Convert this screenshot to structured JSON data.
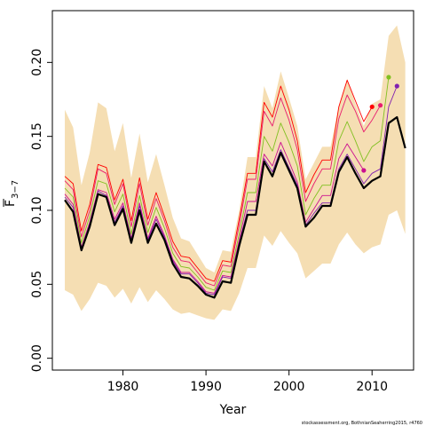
{
  "chart_data": {
    "type": "line",
    "xlabel": "Year",
    "ylabel_main": "F",
    "ylabel_sub": "3−7",
    "xlim": [
      1971.5,
      2015
    ],
    "ylim": [
      -0.008,
      0.235
    ],
    "xticks": [
      1980,
      1990,
      2000,
      2010
    ],
    "yticks": [
      0.0,
      0.05,
      0.1,
      0.15,
      0.2
    ],
    "ytick_labels": [
      "0.00",
      "0.05",
      "0.10",
      "0.15",
      "0.20"
    ],
    "colors": {
      "band": "#f5deb3",
      "final": "#000000",
      "retro_red": "#ff0000",
      "retro_pink": "#e81c6e",
      "retro_magenta": "#cc1090",
      "retro_green": "#80c020",
      "retro_purple": "#8020b0"
    },
    "band": {
      "x": [
        1973,
        1974,
        1975,
        1976,
        1977,
        1978,
        1979,
        1980,
        1981,
        1982,
        1983,
        1984,
        1985,
        1986,
        1987,
        1988,
        1989,
        1990,
        1991,
        1992,
        1993,
        1994,
        1995,
        1996,
        1997,
        1998,
        1999,
        2000,
        2001,
        2002,
        2003,
        2004,
        2005,
        2006,
        2007,
        2008,
        2009,
        2010,
        2011,
        2012,
        2013,
        2014
      ],
      "lower": [
        0.046,
        0.043,
        0.032,
        0.04,
        0.051,
        0.049,
        0.041,
        0.047,
        0.037,
        0.048,
        0.038,
        0.046,
        0.04,
        0.033,
        0.03,
        0.031,
        0.029,
        0.027,
        0.026,
        0.033,
        0.032,
        0.044,
        0.061,
        0.061,
        0.083,
        0.076,
        0.086,
        0.078,
        0.071,
        0.054,
        0.059,
        0.064,
        0.064,
        0.077,
        0.085,
        0.077,
        0.071,
        0.075,
        0.077,
        0.097,
        0.1,
        0.084
      ],
      "upper": [
        0.168,
        0.156,
        0.117,
        0.139,
        0.173,
        0.169,
        0.14,
        0.159,
        0.122,
        0.152,
        0.119,
        0.138,
        0.117,
        0.095,
        0.081,
        0.079,
        0.07,
        0.061,
        0.058,
        0.073,
        0.072,
        0.1,
        0.136,
        0.136,
        0.184,
        0.169,
        0.194,
        0.176,
        0.157,
        0.121,
        0.132,
        0.143,
        0.143,
        0.171,
        0.189,
        0.172,
        0.157,
        0.172,
        0.175,
        0.218,
        0.225,
        0.2
      ]
    },
    "series": [
      {
        "color_key": "retro_red",
        "x": [
          1973,
          1974,
          1975,
          1976,
          1977,
          1978,
          1979,
          1980,
          1981,
          1982,
          1983,
          1984,
          1985,
          1986,
          1987,
          1988,
          1989,
          1990,
          1991,
          1992,
          1993,
          1994,
          1995,
          1996,
          1997,
          1998,
          1999,
          2000,
          2001,
          2002,
          2003,
          2004,
          2005,
          2006,
          2007,
          2008,
          2009,
          2010
        ],
        "y": [
          0.123,
          0.118,
          0.086,
          0.104,
          0.131,
          0.129,
          0.107,
          0.121,
          0.093,
          0.122,
          0.094,
          0.112,
          0.096,
          0.079,
          0.069,
          0.068,
          0.061,
          0.054,
          0.052,
          0.066,
          0.065,
          0.094,
          0.125,
          0.125,
          0.173,
          0.163,
          0.184,
          0.168,
          0.147,
          0.112,
          0.124,
          0.134,
          0.134,
          0.17,
          0.188,
          0.174,
          0.16,
          0.17
        ],
        "end_marker": true
      },
      {
        "color_key": "retro_pink",
        "x": [
          1973,
          1974,
          1975,
          1976,
          1977,
          1978,
          1979,
          1980,
          1981,
          1982,
          1983,
          1984,
          1985,
          1986,
          1987,
          1988,
          1989,
          1990,
          1991,
          1992,
          1993,
          1994,
          1995,
          1996,
          1997,
          1998,
          1999,
          2000,
          2001,
          2002,
          2003,
          2004,
          2005,
          2006,
          2007,
          2008,
          2009,
          2010,
          2011
        ],
        "y": [
          0.12,
          0.114,
          0.082,
          0.1,
          0.128,
          0.125,
          0.104,
          0.118,
          0.089,
          0.118,
          0.09,
          0.108,
          0.093,
          0.075,
          0.066,
          0.065,
          0.058,
          0.051,
          0.049,
          0.063,
          0.062,
          0.09,
          0.121,
          0.121,
          0.167,
          0.157,
          0.176,
          0.161,
          0.141,
          0.106,
          0.118,
          0.128,
          0.128,
          0.162,
          0.178,
          0.167,
          0.153,
          0.161,
          0.171
        ],
        "end_marker": true
      },
      {
        "color_key": "retro_green",
        "x": [
          1973,
          1974,
          1975,
          1976,
          1977,
          1978,
          1979,
          1980,
          1981,
          1982,
          1983,
          1984,
          1985,
          1986,
          1987,
          1988,
          1989,
          1990,
          1991,
          1992,
          1993,
          1994,
          1995,
          1996,
          1997,
          1998,
          1999,
          2000,
          2001,
          2002,
          2003,
          2004,
          2005,
          2006,
          2007,
          2008,
          2009,
          2010,
          2011,
          2012
        ],
        "y": [
          0.115,
          0.109,
          0.078,
          0.096,
          0.12,
          0.118,
          0.099,
          0.111,
          0.084,
          0.11,
          0.085,
          0.102,
          0.088,
          0.071,
          0.062,
          0.061,
          0.055,
          0.048,
          0.046,
          0.059,
          0.058,
          0.084,
          0.112,
          0.112,
          0.15,
          0.14,
          0.159,
          0.146,
          0.13,
          0.097,
          0.108,
          0.117,
          0.117,
          0.147,
          0.16,
          0.147,
          0.133,
          0.143,
          0.147,
          0.19
        ],
        "end_marker": true
      },
      {
        "color_key": "retro_magenta",
        "x": [
          1973,
          1974,
          1975,
          1976,
          1977,
          1978,
          1979,
          1980,
          1981,
          1982,
          1983,
          1984,
          1985,
          1986,
          1987,
          1988,
          1989,
          1990,
          1991,
          1992,
          1993,
          1994,
          1995,
          1996,
          1997,
          1998,
          1999,
          2000,
          2001,
          2002,
          2003,
          2004,
          2005,
          2006,
          2007,
          2008,
          2009
        ],
        "y": [
          0.111,
          0.104,
          0.075,
          0.092,
          0.114,
          0.112,
          0.094,
          0.105,
          0.081,
          0.105,
          0.081,
          0.096,
          0.083,
          0.067,
          0.058,
          0.058,
          0.052,
          0.045,
          0.044,
          0.056,
          0.055,
          0.08,
          0.106,
          0.106,
          0.138,
          0.13,
          0.146,
          0.133,
          0.119,
          0.092,
          0.101,
          0.11,
          0.11,
          0.135,
          0.145,
          0.136,
          0.127
        ],
        "end_marker": true
      },
      {
        "color_key": "retro_purple",
        "x": [
          1973,
          1974,
          1975,
          1976,
          1977,
          1978,
          1979,
          1980,
          1981,
          1982,
          1983,
          1984,
          1985,
          1986,
          1987,
          1988,
          1989,
          1990,
          1991,
          1992,
          1993,
          1994,
          1995,
          1996,
          1997,
          1998,
          1999,
          2000,
          2001,
          2002,
          2003,
          2004,
          2005,
          2006,
          2007,
          2008,
          2009,
          2010,
          2011,
          2012,
          2013
        ],
        "y": [
          0.109,
          0.102,
          0.074,
          0.091,
          0.113,
          0.11,
          0.092,
          0.103,
          0.08,
          0.103,
          0.08,
          0.094,
          0.082,
          0.066,
          0.057,
          0.057,
          0.051,
          0.044,
          0.043,
          0.055,
          0.054,
          0.078,
          0.1,
          0.1,
          0.135,
          0.126,
          0.141,
          0.129,
          0.117,
          0.09,
          0.098,
          0.105,
          0.105,
          0.128,
          0.138,
          0.128,
          0.118,
          0.125,
          0.128,
          0.17,
          0.184
        ],
        "end_marker": true
      },
      {
        "color_key": "final",
        "x": [
          1973,
          1974,
          1975,
          1976,
          1977,
          1978,
          1979,
          1980,
          1981,
          1982,
          1983,
          1984,
          1985,
          1986,
          1987,
          1988,
          1989,
          1990,
          1991,
          1992,
          1993,
          1994,
          1995,
          1996,
          1997,
          1998,
          1999,
          2000,
          2001,
          2002,
          2003,
          2004,
          2005,
          2006,
          2007,
          2008,
          2009,
          2010,
          2011,
          2012,
          2013,
          2014
        ],
        "y": [
          0.107,
          0.099,
          0.073,
          0.089,
          0.111,
          0.109,
          0.09,
          0.101,
          0.078,
          0.1,
          0.078,
          0.091,
          0.08,
          0.064,
          0.055,
          0.054,
          0.049,
          0.043,
          0.041,
          0.052,
          0.051,
          0.076,
          0.097,
          0.097,
          0.133,
          0.123,
          0.139,
          0.127,
          0.115,
          0.089,
          0.095,
          0.103,
          0.103,
          0.126,
          0.136,
          0.125,
          0.115,
          0.12,
          0.123,
          0.159,
          0.163,
          0.142
        ],
        "thick": true,
        "end_marker": false
      }
    ],
    "credit": "stockassessment.org, BothnianSeaherring2015, r4760"
  }
}
